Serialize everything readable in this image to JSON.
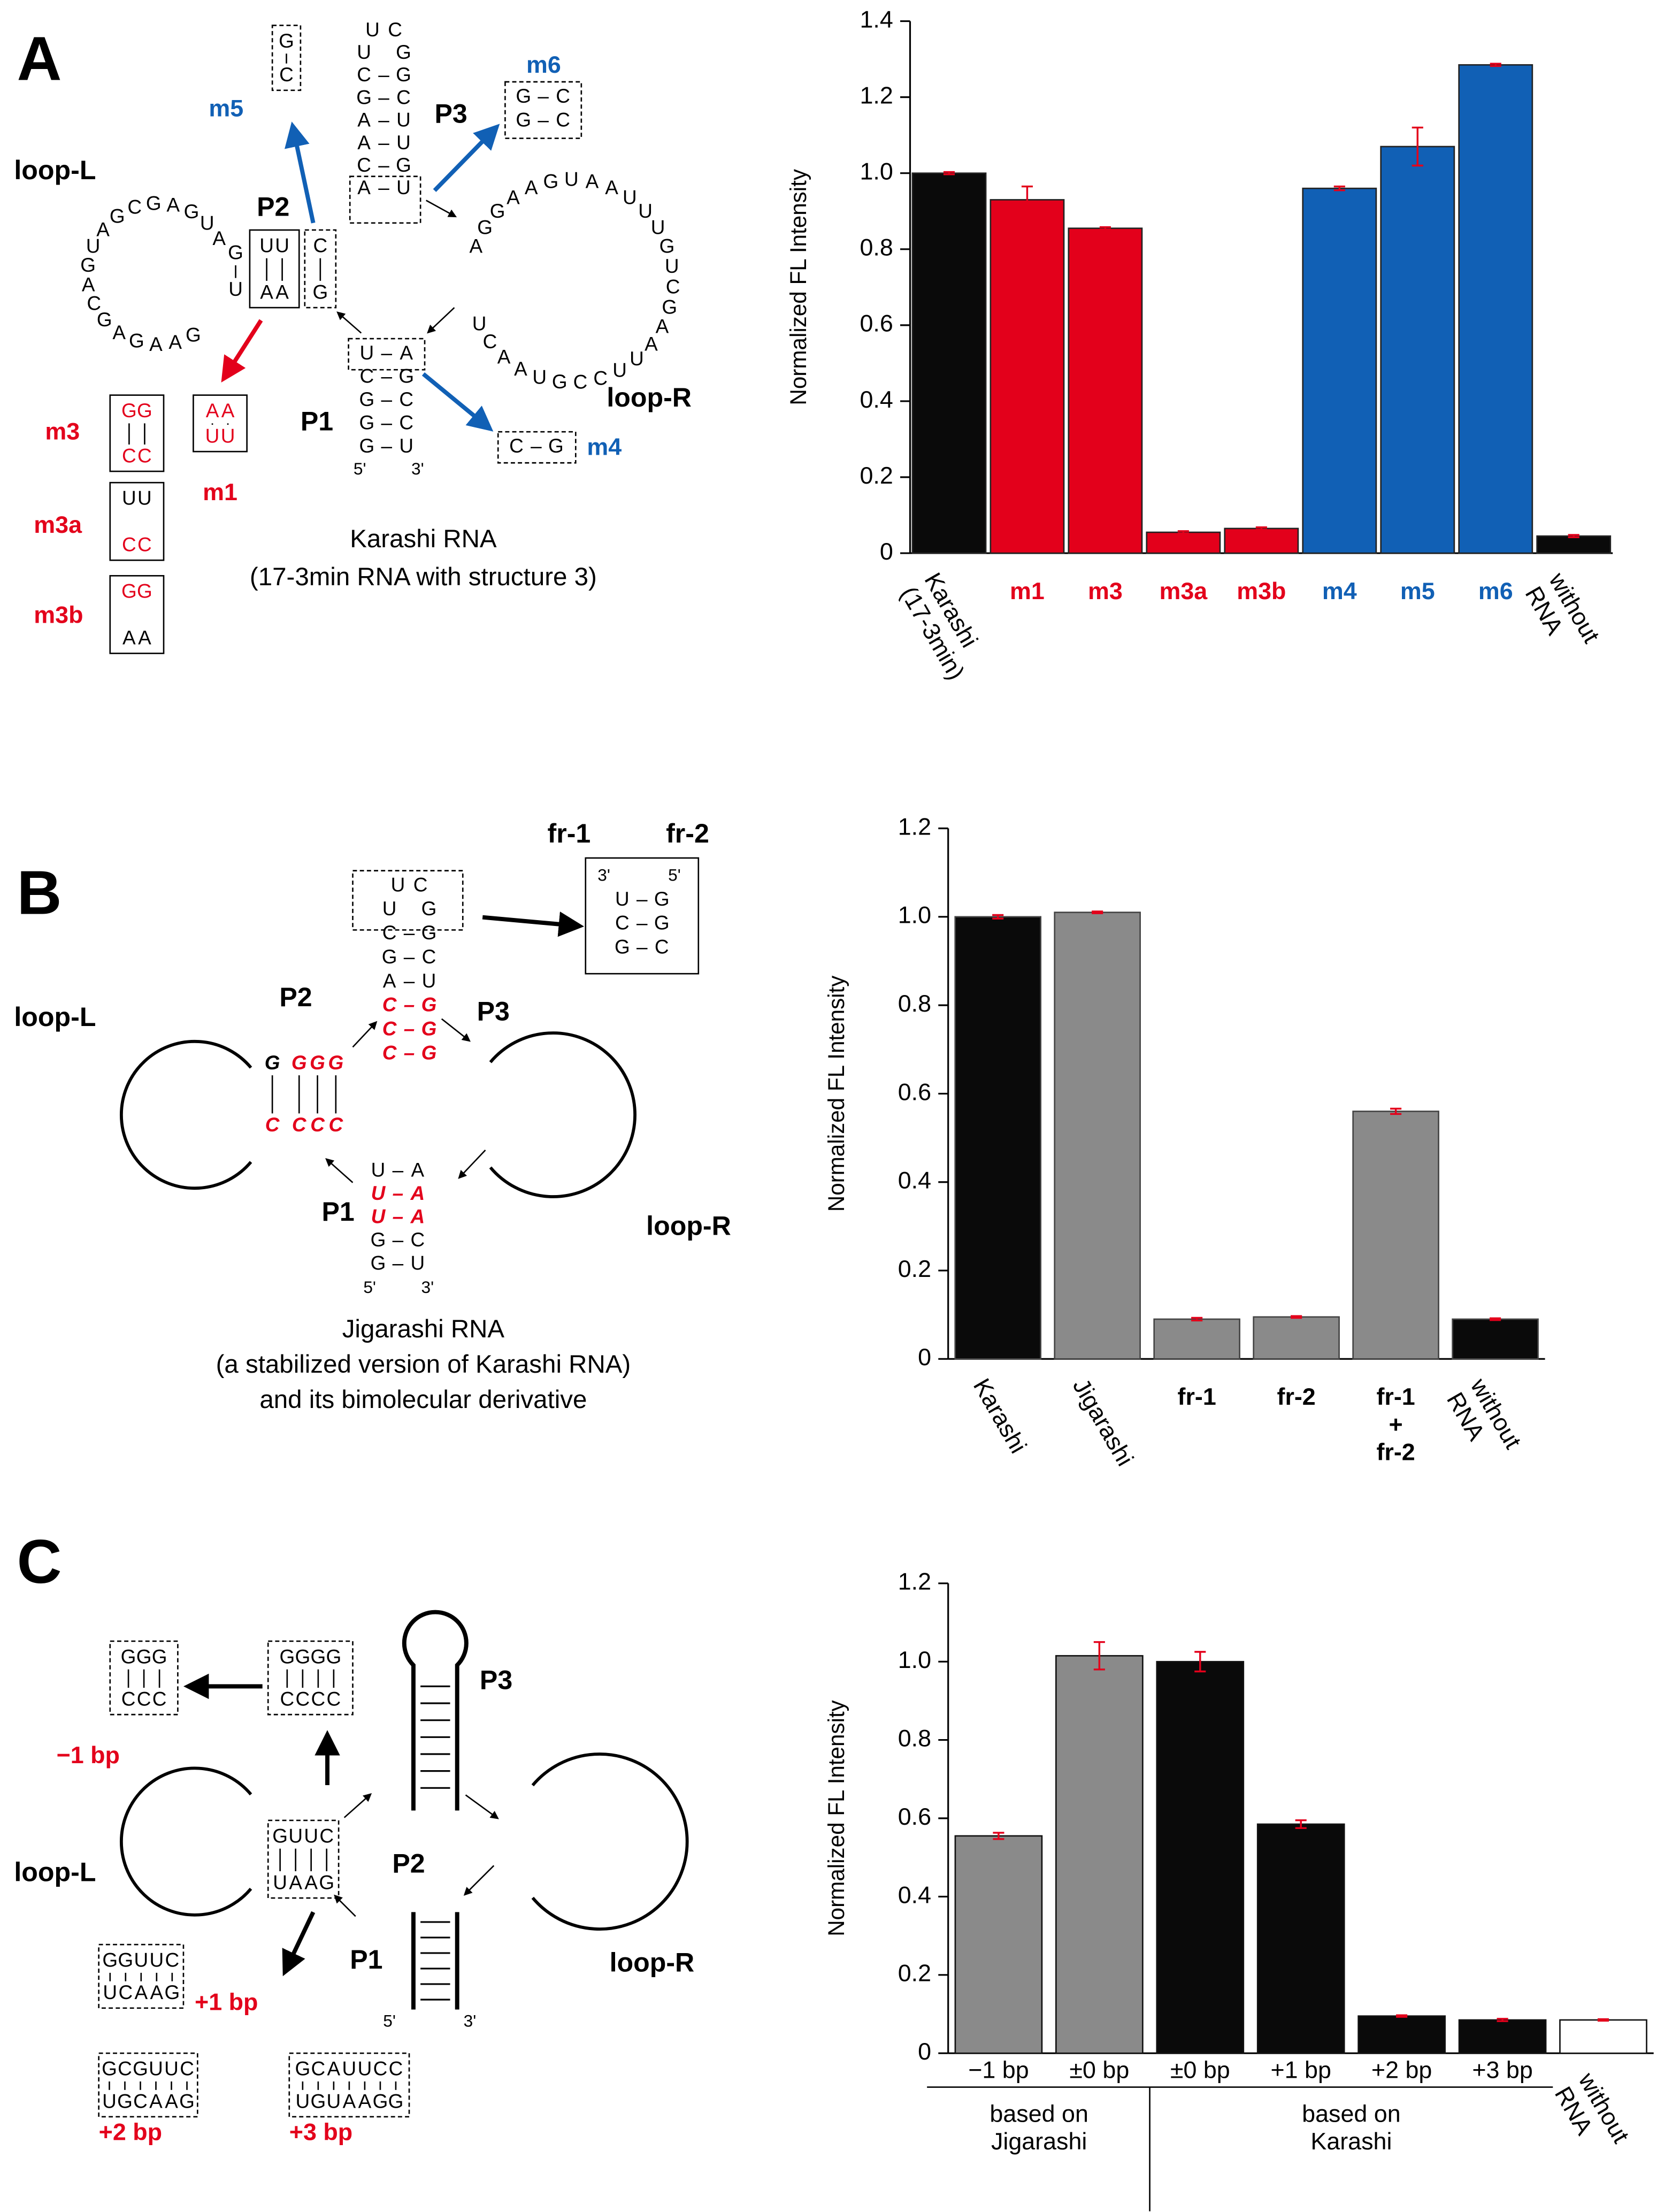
{
  "chart_data": [
    {
      "type": "bar",
      "ylabel": "Normalized FL Intensity",
      "categories": [
        "Karashi\n(17-3min)",
        "m1",
        "m3",
        "m3a",
        "m3b",
        "m4",
        "m5",
        "m6",
        "without\nRNA"
      ],
      "values": [
        1.0,
        0.93,
        0.855,
        0.055,
        0.065,
        0.96,
        1.07,
        1.285,
        0.045
      ],
      "errors": [
        0.003,
        0.035,
        0.003,
        0.003,
        0.003,
        0.005,
        0.05,
        0.003,
        0.003
      ],
      "colors": [
        "#0a0a0a",
        "#e3001b",
        "#e3001b",
        "#e3001b",
        "#e3001b",
        "#1160b5",
        "#1160b5",
        "#1160b5",
        "#0a0a0a"
      ],
      "label_colors": [
        "#000000",
        "#e3001b",
        "#e3001b",
        "#e3001b",
        "#e3001b",
        "#1160b5",
        "#1160b5",
        "#1160b5",
        "#000000"
      ],
      "error_color": "#e3001b",
      "ylim": [
        0,
        1.4
      ],
      "yticks": [
        0,
        0.2,
        0.4,
        0.6,
        0.8,
        {
          "value": 1,
          "label": "1.0"
        },
        1.2,
        1.4
      ]
    },
    {
      "type": "bar",
      "ylabel": "Normalized FL Intensity",
      "categories": [
        "Karashi",
        "Jigarashi",
        "fr-1",
        "fr-2",
        "fr-1\n+\nfr-2",
        "without\nRNA"
      ],
      "values": [
        1.0,
        1.01,
        0.09,
        0.095,
        0.56,
        0.09
      ],
      "errors": [
        0.004,
        0.002,
        0.003,
        0.002,
        0.006,
        0.002
      ],
      "colors": [
        "#0a0a0a",
        "#8a8a8a",
        "#8a8a8a",
        "#8a8a8a",
        "#8a8a8a",
        "#0a0a0a"
      ],
      "error_color": "#e3001b",
      "ylim": [
        0,
        1.2
      ],
      "yticks": [
        0,
        0.2,
        0.4,
        0.6,
        0.8,
        {
          "value": 1,
          "label": "1.0"
        },
        1.2
      ]
    },
    {
      "type": "bar",
      "ylabel": "Normalized FL Intensity",
      "categories": [
        "−1 bp",
        "±0 bp",
        "±0 bp",
        "+1 bp",
        "+2 bp",
        "+3 bp",
        "without\nRNA"
      ],
      "values": [
        0.555,
        1.015,
        1.0,
        0.585,
        0.095,
        0.085,
        0.085
      ],
      "errors": [
        0.008,
        0.035,
        0.025,
        0.01,
        0.002,
        0.003,
        0.002
      ],
      "colors": [
        "#8a8a8a",
        "#8a8a8a",
        "#0a0a0a",
        "#0a0a0a",
        "#0a0a0a",
        "#0a0a0a",
        "#ffffff"
      ],
      "error_color": "#e3001b",
      "groups": [
        "based on\nJigarashi",
        "based on\nKarashi"
      ],
      "ylim": [
        0,
        1.2
      ],
      "yticks": [
        0,
        0.2,
        0.4,
        0.6,
        0.8,
        {
          "value": 1,
          "label": "1.0"
        },
        1.2
      ]
    }
  ],
  "diagram_a": {
    "panel": "A",
    "loop_l": "loop-L",
    "loop_r": "loop-R",
    "p1": "P1",
    "p2": "P2",
    "p3": "P3",
    "loop_l_seq": "GAAGAGCAGUAGCGAGUA",
    "loop_r_seq": "AGGAAGUAAUUUGUCGAAUUCCGUAACU",
    "p3_rows": [
      "U C",
      "U G",
      "C–G",
      "G–C",
      "A–U",
      "A–U",
      "C–G",
      "A–U"
    ],
    "p2_outer": {
      "top": "G",
      "bottom": "U"
    },
    "p2_main": {
      "top": "UU",
      "bottom": "AA"
    },
    "p2_inner": {
      "top": "C",
      "bottom": "G"
    },
    "p1_rows": [
      "U–A",
      "C–G",
      "G–C",
      "G–C",
      "G–U"
    ],
    "five": "5'",
    "three": "3'",
    "m5": {
      "label": "m5",
      "top": "G",
      "bottom": "C"
    },
    "m6": {
      "label": "m6",
      "rows": [
        "G–C",
        "G–C"
      ]
    },
    "m4": {
      "label": "m4",
      "rows": [
        "C–G"
      ]
    },
    "m3": {
      "label": "m3",
      "top": "GG",
      "bottom": "CC"
    },
    "m1": {
      "label": "m1",
      "top": "AA",
      "bottom": "UU"
    },
    "m3a": {
      "label": "m3a",
      "top": "UU",
      "bottom": "CC"
    },
    "m3b": {
      "label": "m3b",
      "top": "GG",
      "bottom": "AA"
    },
    "caption": [
      "Karashi RNA",
      "(17-3min RNA with structure 3)"
    ]
  },
  "diagram_b": {
    "panel": "B",
    "loop_l": "loop-L",
    "loop_r": "loop-R",
    "p1": "P1",
    "p2": "P2",
    "p3": "P3",
    "p3_rows": [
      "U C",
      "U G",
      "C–G",
      "G–C",
      "A–U",
      "C–G",
      "C–G",
      "C–G"
    ],
    "p2_outer": {
      "top": "G",
      "bottom": "C"
    },
    "p2_main": {
      "top": "GGG",
      "bottom": "CCC"
    },
    "p1_rows": [
      "U–A",
      "U–A",
      "U–A",
      "G–C",
      "G–U"
    ],
    "five": "5'",
    "three": "3'",
    "fr1": "fr-1",
    "fr2": "fr-2",
    "fr_box": {
      "three": "3'",
      "five": "5'",
      "rows": [
        "U–G",
        "C–G",
        "G–C"
      ]
    },
    "caption": [
      "Jigarashi RNA",
      "(a stabilized version of Karashi RNA)",
      "and its bimolecular derivative"
    ]
  },
  "diagram_c": {
    "panel": "C",
    "loop_l": "loop-L",
    "loop_r": "loop-R",
    "p1": "P1",
    "p2": "P2",
    "p3": "P3",
    "five": "5'",
    "three": "3'",
    "p2_box": {
      "top": "GUUC",
      "bottom": "UAAG"
    },
    "zero": {
      "top": "GGGG",
      "bottom": "CCCC"
    },
    "minus1": {
      "label": "−1 bp",
      "top": "GGG",
      "bottom": "CCC"
    },
    "plus1": {
      "label": "+1 bp",
      "top": "GGUUC",
      "bottom": "UCAAG"
    },
    "plus2": {
      "label": "+2 bp",
      "top": "GCGUUC",
      "bottom": "UGCAAG"
    },
    "plus3": {
      "label": "+3 bp",
      "top": "GCAUUCC",
      "bottom": "UGUAAGG"
    }
  }
}
